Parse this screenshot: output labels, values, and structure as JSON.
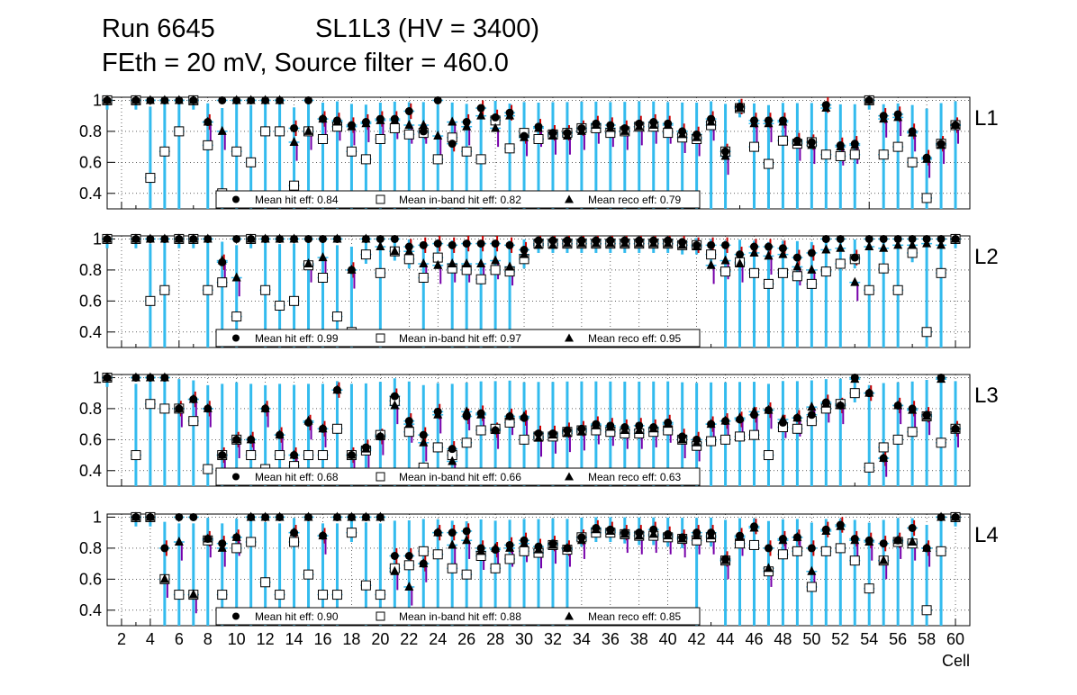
{
  "header": {
    "run": "Run 6645",
    "chamber": "SL1L3 (HV = 3400)",
    "settings": "FEth = 20 mV, Source filter = 460.0"
  },
  "chart_data": {
    "type": "scatter",
    "xlabel": "Cell",
    "xlim": [
      1,
      61
    ],
    "ylim": [
      0.3,
      1.02
    ],
    "x_ticks": [
      2,
      4,
      6,
      8,
      10,
      12,
      14,
      16,
      18,
      20,
      22,
      24,
      26,
      28,
      30,
      32,
      34,
      36,
      38,
      40,
      42,
      44,
      46,
      48,
      50,
      52,
      54,
      56,
      58,
      60
    ],
    "y_ticks": [
      "0.4",
      "0.6",
      "0.8",
      "1"
    ],
    "grid": true,
    "colors": {
      "error_lo": "#33bbee",
      "error_hi": "#cc0000",
      "error_reco": "#7700aa",
      "marker": "#000000"
    },
    "legend_labels": {
      "hit": "Mean hit  eff: ",
      "inband": "Mean in-band hit eff: ",
      "reco": "Mean reco eff: "
    },
    "panels": [
      {
        "layer": "L1",
        "mean_hit": "0.84",
        "mean_inband": "0.82",
        "mean_reco": "0.79",
        "hit": [
          1,
          null,
          1,
          1,
          1,
          1,
          1,
          0.86,
          1,
          1,
          1,
          1,
          1,
          0.82,
          1,
          0.88,
          0.87,
          0.84,
          0.86,
          0.88,
          0.88,
          0.93,
          0.8,
          1,
          0.72,
          0.86,
          0.95,
          0.89,
          0.92,
          0.77,
          0.83,
          0.79,
          0.79,
          0.82,
          0.85,
          0.84,
          0.82,
          0.85,
          0.86,
          0.85,
          0.8,
          0.78,
          0.88,
          0.67,
          0.96,
          0.87,
          0.87,
          0.87,
          0.74,
          0.73,
          0.97,
          0.71,
          0.72,
          1,
          0.9,
          0.91,
          0.8,
          0.63,
          0.72,
          0.84
        ],
        "inband": [
          1,
          null,
          1,
          0.5,
          0.67,
          0.8,
          1,
          0.71,
          0.4,
          0.67,
          0.6,
          0.8,
          0.8,
          0.45,
          0.8,
          0.75,
          0.83,
          0.67,
          0.62,
          0.75,
          0.82,
          0.78,
          0.79,
          0.62,
          0.76,
          0.67,
          0.62,
          0.87,
          0.69,
          0.79,
          0.75,
          0.78,
          0.79,
          0.82,
          0.82,
          0.79,
          0.8,
          0.83,
          0.83,
          0.79,
          0.76,
          0.75,
          0.84,
          0.67,
          0.95,
          0.7,
          0.59,
          0.74,
          0.72,
          0.73,
          0.65,
          0.64,
          0.65,
          1,
          0.65,
          0.7,
          0.6,
          0.37,
          0.72,
          0.84
        ],
        "reco": [
          1,
          null,
          1,
          1,
          1,
          1,
          1,
          0.86,
          0.8,
          1,
          1,
          1,
          1,
          0.73,
          0.8,
          0.88,
          0.86,
          0.83,
          0.85,
          0.87,
          0.87,
          0.84,
          0.84,
          0.77,
          0.86,
          0.83,
          0.9,
          0.82,
          0.9,
          0.76,
          0.82,
          0.77,
          0.77,
          0.8,
          0.84,
          0.82,
          0.8,
          0.83,
          0.84,
          0.84,
          0.78,
          0.76,
          0.86,
          0.64,
          0.95,
          0.85,
          0.85,
          0.86,
          0.73,
          0.71,
          0.95,
          0.7,
          0.71,
          1,
          0.88,
          0.89,
          0.79,
          0.62,
          0.71,
          0.84
        ]
      },
      {
        "layer": "L2",
        "mean_hit": "0.99",
        "mean_inband": "0.97",
        "mean_reco": "0.95",
        "hit": [
          1,
          null,
          1,
          1,
          1,
          1,
          1,
          1,
          0.85,
          1,
          1,
          1,
          1,
          1,
          1,
          1,
          1,
          0.8,
          1,
          1,
          1,
          0.95,
          0.96,
          0.97,
          0.96,
          0.97,
          0.97,
          0.97,
          0.96,
          0.93,
          0.99,
          0.99,
          0.99,
          0.99,
          0.99,
          0.99,
          0.99,
          0.99,
          0.99,
          0.99,
          0.98,
          0.96,
          0.96,
          0.96,
          0.9,
          0.95,
          0.95,
          0.94,
          0.88,
          0.91,
          1,
          1,
          0.88,
          1,
          1,
          1,
          1,
          1,
          1,
          1
        ],
        "inband": [
          1,
          null,
          1,
          0.6,
          0.67,
          1,
          1,
          0.67,
          0.72,
          0.5,
          1,
          0.67,
          0.57,
          0.6,
          0.83,
          0.75,
          0.5,
          0.4,
          0.9,
          0.78,
          0.92,
          0.87,
          0.75,
          0.88,
          0.81,
          0.8,
          0.74,
          0.8,
          0.79,
          0.87,
          0.97,
          0.97,
          0.97,
          0.97,
          0.97,
          0.97,
          0.97,
          0.97,
          0.97,
          0.97,
          0.96,
          0.96,
          0.9,
          0.79,
          0.85,
          0.78,
          0.71,
          0.78,
          0.76,
          0.71,
          0.79,
          0.84,
          0.87,
          0.67,
          0.81,
          0.67,
          0.91,
          0.4,
          0.78,
          1
        ],
        "reco": [
          1,
          null,
          1,
          1,
          1,
          1,
          1,
          1,
          0.86,
          0.75,
          1,
          1,
          1,
          1,
          0.84,
          0.88,
          1,
          0.8,
          1,
          0.95,
          0.92,
          0.92,
          0.84,
          0.83,
          0.84,
          0.84,
          0.84,
          0.86,
          0.82,
          0.9,
          0.96,
          0.96,
          0.97,
          0.97,
          0.97,
          0.97,
          0.97,
          0.97,
          0.97,
          0.97,
          0.96,
          0.95,
          0.83,
          0.86,
          0.84,
          0.91,
          0.89,
          0.9,
          0.82,
          0.8,
          0.93,
          0.94,
          0.72,
          0.95,
          0.94,
          0.96,
          0.96,
          0.97,
          0.96,
          1
        ]
      },
      {
        "layer": "L3",
        "mean_hit": "0.68",
        "mean_inband": "0.66",
        "mean_reco": "0.63",
        "hit": [
          1,
          null,
          1,
          1,
          1,
          0.8,
          0.86,
          0.8,
          0.5,
          0.6,
          0.6,
          0.8,
          0.63,
          0.5,
          0.71,
          0.67,
          0.92,
          0.5,
          0.55,
          0.62,
          0.88,
          0.72,
          0.63,
          0.78,
          0.54,
          0.75,
          0.77,
          0.66,
          0.75,
          0.74,
          0.64,
          0.64,
          0.66,
          0.67,
          0.7,
          0.69,
          0.68,
          0.69,
          0.68,
          0.71,
          0.62,
          0.6,
          0.7,
          0.72,
          0.73,
          0.76,
          0.79,
          0.71,
          0.74,
          0.76,
          0.84,
          0.82,
          1,
          0.9,
          0.48,
          0.82,
          0.8,
          0.76,
          1,
          0.67
        ],
        "inband": [
          1,
          null,
          0.5,
          0.83,
          0.8,
          0.8,
          0.72,
          0.41,
          0.5,
          0.6,
          0.5,
          0.41,
          0.5,
          0.43,
          0.5,
          0.5,
          0.67,
          0.5,
          0.53,
          0.63,
          0.85,
          0.65,
          0.42,
          0.55,
          0.5,
          0.58,
          0.66,
          0.67,
          0.71,
          0.6,
          0.62,
          0.62,
          0.65,
          0.66,
          0.66,
          0.65,
          0.64,
          0.64,
          0.65,
          0.66,
          0.6,
          0.56,
          0.59,
          0.6,
          0.62,
          0.63,
          0.5,
          0.68,
          0.67,
          0.72,
          0.8,
          0.83,
          0.9,
          0.42,
          0.55,
          0.6,
          0.65,
          0.75,
          0.58,
          0.67
        ],
        "reco": [
          1,
          null,
          1,
          1,
          1,
          0.8,
          0.86,
          0.8,
          0.5,
          0.6,
          0.6,
          0.8,
          0.63,
          0.5,
          0.72,
          0.67,
          0.92,
          0.5,
          0.54,
          0.62,
          0.82,
          0.7,
          0.58,
          0.76,
          0.46,
          0.78,
          0.76,
          0.66,
          0.75,
          0.75,
          0.61,
          0.63,
          0.64,
          0.65,
          0.69,
          0.68,
          0.66,
          0.66,
          0.67,
          0.7,
          0.6,
          0.58,
          0.7,
          0.72,
          0.74,
          0.78,
          0.79,
          0.73,
          0.74,
          0.81,
          0.83,
          0.82,
          0.99,
          0.9,
          0.48,
          0.82,
          0.79,
          0.75,
          0.99,
          0.67
        ]
      },
      {
        "layer": "L4",
        "mean_hit": "0.90",
        "mean_inband": "0.88",
        "mean_reco": "0.85",
        "hit": [
          null,
          null,
          1,
          1,
          0.8,
          1,
          1,
          0.86,
          0.83,
          0.87,
          1,
          1,
          1,
          0.9,
          1,
          0.88,
          1,
          1,
          1,
          1,
          0.75,
          0.75,
          0.7,
          0.9,
          0.9,
          0.91,
          0.8,
          0.79,
          0.82,
          0.85,
          0.81,
          0.83,
          0.8,
          0.87,
          0.93,
          0.92,
          0.9,
          0.9,
          0.92,
          0.89,
          0.87,
          0.9,
          0.9,
          0.73,
          0.88,
          0.94,
          0.8,
          0.86,
          0.87,
          0.8,
          0.92,
          0.95,
          0.86,
          0.85,
          0.83,
          0.85,
          0.93,
          0.8,
          1,
          1
        ],
        "inband": [
          null,
          null,
          1,
          1,
          0.6,
          0.5,
          0.5,
          0.85,
          0.5,
          0.8,
          0.84,
          0.58,
          0.5,
          0.84,
          0.63,
          0.5,
          0.5,
          0.9,
          0.56,
          0.5,
          0.67,
          0.69,
          0.78,
          0.76,
          0.67,
          0.63,
          0.75,
          0.67,
          0.73,
          0.78,
          0.77,
          0.82,
          0.79,
          0.87,
          0.9,
          0.9,
          0.89,
          0.88,
          0.88,
          0.87,
          0.86,
          0.85,
          0.87,
          0.72,
          0.83,
          0.82,
          0.65,
          0.76,
          0.78,
          0.55,
          0.78,
          0.8,
          0.72,
          0.54,
          0.72,
          0.84,
          0.83,
          0.4,
          0.78,
          1
        ],
        "reco": [
          null,
          null,
          1,
          1,
          0.6,
          0.84,
          0.5,
          0.86,
          0.8,
          0.87,
          1,
          1,
          1,
          0.9,
          1,
          0.88,
          1,
          1,
          1,
          1,
          0.65,
          0.55,
          0.7,
          0.9,
          0.82,
          0.85,
          0.78,
          0.8,
          0.8,
          0.83,
          0.79,
          0.82,
          0.8,
          0.85,
          0.92,
          0.91,
          0.89,
          0.88,
          0.89,
          0.88,
          0.86,
          0.88,
          0.88,
          0.72,
          0.87,
          0.93,
          0.67,
          0.85,
          0.87,
          0.65,
          0.91,
          0.94,
          0.85,
          0.84,
          0.72,
          0.85,
          0.84,
          0.8,
          1,
          1
        ]
      }
    ]
  }
}
